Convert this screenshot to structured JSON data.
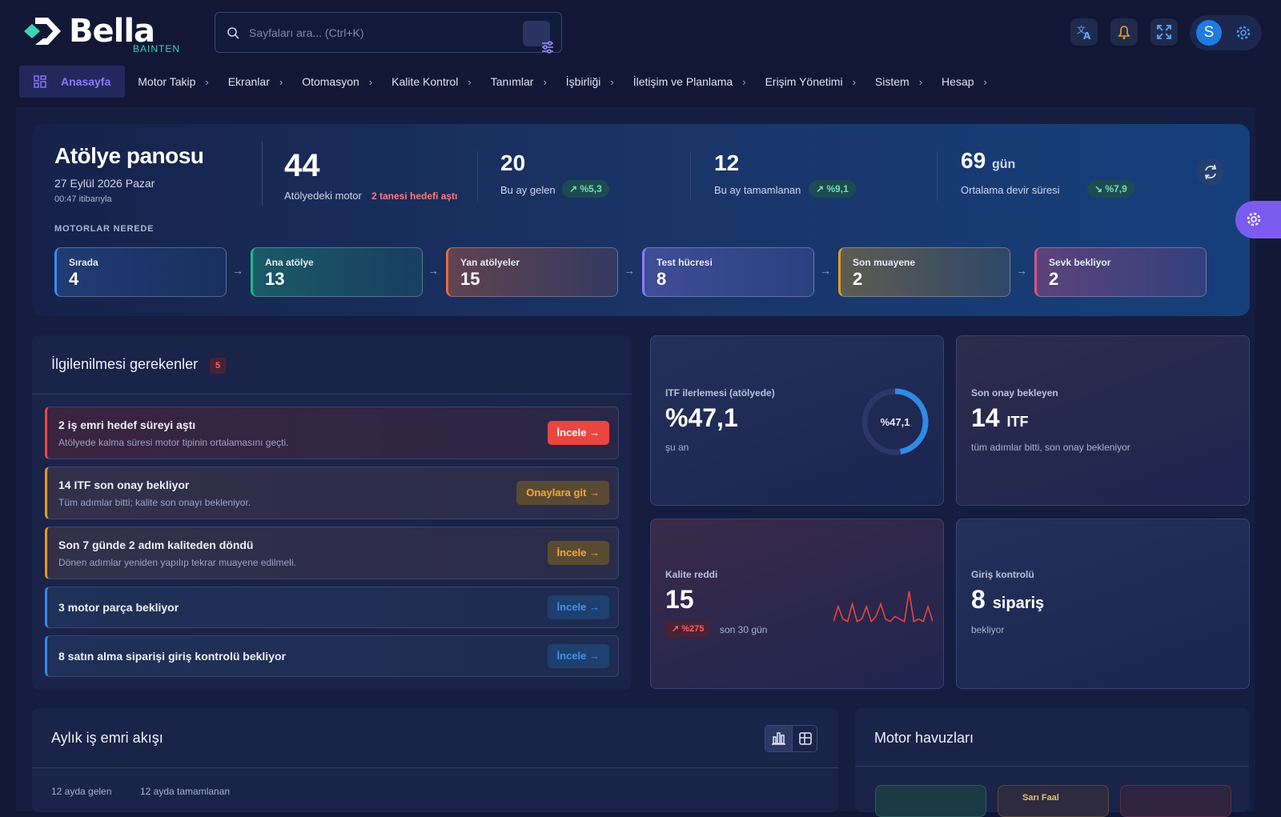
{
  "brand": {
    "name": "Bella",
    "sub": "BAINTEN"
  },
  "search": {
    "placeholder": "Sayfaları ara... (Ctrl+K)"
  },
  "user": {
    "initial": "S"
  },
  "nav": [
    {
      "label": "Anasayfa"
    },
    {
      "label": "Motor Takip"
    },
    {
      "label": "Ekranlar"
    },
    {
      "label": "Otomasyon"
    },
    {
      "label": "Kalite Kontrol"
    },
    {
      "label": "Tanımlar"
    },
    {
      "label": "İşbirliği"
    },
    {
      "label": "İletişim ve Planlama"
    },
    {
      "label": "Erişim Yönetimi"
    },
    {
      "label": "Sistem"
    },
    {
      "label": "Hesap"
    }
  ],
  "hero": {
    "title": "Atölye panosu",
    "date": "27 Eylül 2026 Pazar",
    "as_of": "00:47 itibarıyla",
    "k1": {
      "value": "44",
      "label": "Atölyedeki motor",
      "alert": "2 tanesi hedefi aştı"
    },
    "k2": {
      "value": "20",
      "label": "Bu ay gelen",
      "trend": "%5,3"
    },
    "k3": {
      "value": "12",
      "label": "Bu ay tamamlanan",
      "trend": "%9,1"
    },
    "k4": {
      "value": "69",
      "unit": "gün",
      "label": "Ortalama devir süresi",
      "trend": "%7,9"
    },
    "where_title": "MOTORLAR NEREDE",
    "stages": [
      {
        "label": "Sırada",
        "value": "4",
        "color": "#3d8cf0"
      },
      {
        "label": "Ana atölye",
        "value": "13",
        "color": "#1fb88a"
      },
      {
        "label": "Yan atölyeler",
        "value": "15",
        "color": "#ea6a3a"
      },
      {
        "label": "Test hücresi",
        "value": "8",
        "color": "#8a7ef0"
      },
      {
        "label": "Son muayene",
        "value": "2",
        "color": "#e0a020"
      },
      {
        "label": "Sevk bekliyor",
        "value": "2",
        "color": "#e0508a"
      }
    ]
  },
  "attention": {
    "title": "İlgilenilmesi gerekenler",
    "count": "5",
    "items": [
      {
        "title": "2 iş emri hedef süreyi aştı",
        "sub": "Atölyede kalma süresi motor tipinin ortalamasını geçti.",
        "action": "İncele",
        "arrow": "→"
      },
      {
        "title": "14 ITF son onay bekliyor",
        "sub": "Tüm adımlar bitti; kalite son onayı bekleniyor.",
        "action": "Onaylara git",
        "arrow": "→"
      },
      {
        "title": "Son 7 günde 2 adım kaliteden döndü",
        "sub": "Dönen adımlar yeniden yapılıp tekrar muayene edilmeli.",
        "action": "İncele",
        "arrow": "→"
      },
      {
        "title": "3 motor parça bekliyor",
        "action": "İncele",
        "arrow": "→"
      },
      {
        "title": "8 satın alma siparişi giriş kontrolü bekliyor",
        "action": "İncele",
        "arrow": "→"
      }
    ]
  },
  "tiles": {
    "itf": {
      "label": "ITF ilerlemesi (atölyede)",
      "value": "%47,1",
      "sub": "şu an",
      "ring": "%47,1",
      "progress": 0.471
    },
    "final": {
      "label": "Son onay bekleyen",
      "value": "14",
      "unit": "ITF",
      "sub": "tüm adımlar bitti, son onay bekleniyor"
    },
    "reject": {
      "label": "Kalite reddi",
      "value": "15",
      "trend": "%275",
      "sub": "son 30 gün",
      "spark": [
        2,
        8,
        3,
        2,
        9,
        2,
        3,
        8,
        2,
        4,
        9,
        3,
        2,
        4,
        3,
        2,
        14,
        2,
        3,
        2,
        8,
        2
      ]
    },
    "inbound": {
      "label": "Giriş kontrolü",
      "value": "8",
      "unit": "sipariş",
      "sub": "bekliyor"
    }
  },
  "flow": {
    "title": "Aylık iş emri akışı",
    "leg1": "12 ayda gelen",
    "leg2": "12 ayda tamamlanan"
  },
  "pools": {
    "title": "Motor havuzları",
    "partial": "Sarı Faal"
  },
  "colors": {
    "accent": "#8c7bff",
    "red": "#e9453f",
    "orange": "#e59a1b",
    "blue": "#2f8ae6",
    "teal": "#3dd4b7"
  }
}
